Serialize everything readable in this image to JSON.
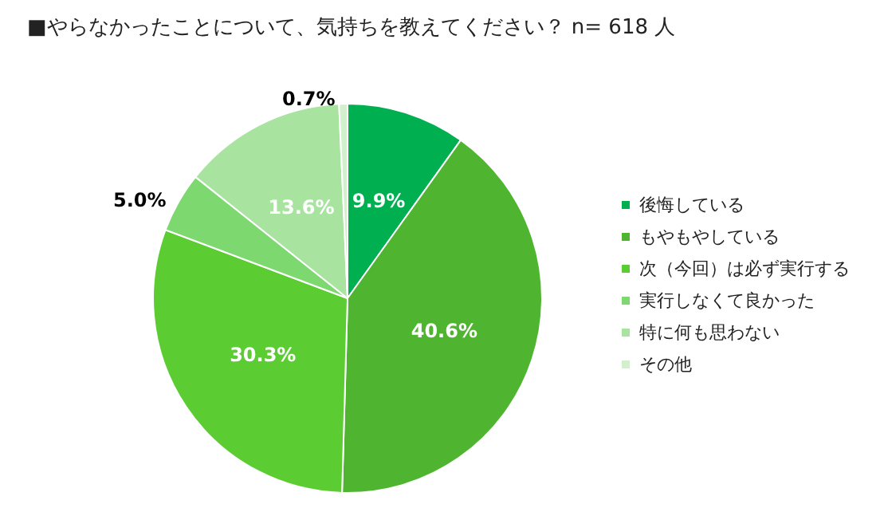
{
  "chart_data": {
    "type": "pie",
    "title": "■やらなかったことについて、気持ちを教えてください？ n= 618 人",
    "categories": [
      "後悔している",
      "もやもやしている",
      "次（今回）は必ず実行する",
      "実行しなくて良かった",
      "特に何も思わない",
      "その他"
    ],
    "values": [
      9.9,
      40.6,
      30.3,
      5.0,
      13.6,
      0.7
    ],
    "value_labels": [
      "9.9%",
      "40.6%",
      "30.3%",
      "5.0%",
      "13.6%",
      "0.7%"
    ],
    "colors": [
      "#00b050",
      "#4fb530",
      "#5ccc33",
      "#7dd870",
      "#a8e4a0",
      "#d2f0cc"
    ],
    "legend": "right"
  }
}
